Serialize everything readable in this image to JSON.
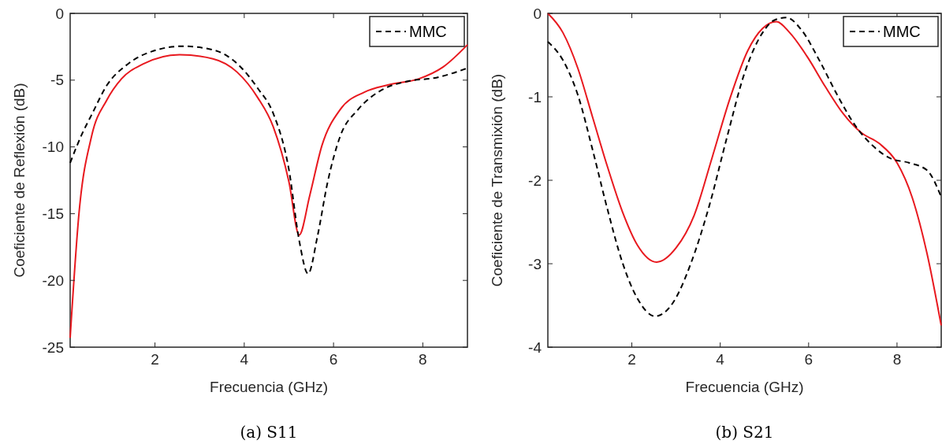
{
  "chart_data": [
    {
      "type": "line",
      "title": "(a) S11",
      "xlabel": "Frecuencia (GHz)",
      "ylabel": "Coeficiente de Reflexión (dB)",
      "xlim": [
        0.1,
        9
      ],
      "xticks": [
        2,
        4,
        6,
        8
      ],
      "ylim": [
        -25,
        0
      ],
      "yticks": [
        -25,
        -20,
        -15,
        -10,
        -5,
        0
      ],
      "grid": false,
      "legend": "top right",
      "series": [
        {
          "color": "#e8191f",
          "line_style": "solid",
          "x": [
            0.1,
            0.3,
            0.58,
            0.92,
            1.25,
            1.73,
            2.55,
            3.3,
            3.84,
            4.3,
            4.65,
            5.0,
            5.23,
            5.47,
            5.74,
            6.15,
            6.69,
            7.23,
            7.91,
            8.46,
            9.0
          ],
          "values": [
            -24.3,
            -14.9,
            -9.2,
            -6.5,
            -4.9,
            -3.8,
            -3.1,
            -3.4,
            -4.4,
            -6.3,
            -8.5,
            -12.6,
            -16.6,
            -13.6,
            -9.9,
            -7.2,
            -5.9,
            -5.35,
            -4.9,
            -4.0,
            -2.35
          ]
        },
        {
          "name": "MMC",
          "color": "#000000",
          "line_style": "dashed",
          "x": [
            0.1,
            0.37,
            0.58,
            0.92,
            1.39,
            1.93,
            2.61,
            3.3,
            3.84,
            4.3,
            4.65,
            5.0,
            5.23,
            5.43,
            5.64,
            5.87,
            6.15,
            6.55,
            7.1,
            7.64,
            8.32,
            9.0
          ],
          "values": [
            -11.2,
            -9.0,
            -7.6,
            -5.4,
            -3.8,
            -2.85,
            -2.46,
            -2.73,
            -3.76,
            -5.6,
            -7.5,
            -11.7,
            -17.0,
            -19.5,
            -16.7,
            -12.6,
            -9.2,
            -7.2,
            -5.7,
            -5.1,
            -4.8,
            -4.1
          ]
        }
      ]
    },
    {
      "type": "line",
      "title": "(b) S21",
      "xlabel": "Frecuencia (GHz)",
      "ylabel": "Coeficiente de Transmixión (dB)",
      "xlim": [
        0.1,
        9
      ],
      "xticks": [
        2,
        4,
        6,
        8
      ],
      "ylim": [
        -4,
        0
      ],
      "yticks": [
        -4,
        -3,
        -2,
        -1,
        0
      ],
      "grid": false,
      "legend": "top right",
      "series": [
        {
          "color": "#e8191f",
          "line_style": "solid",
          "x": [
            0.1,
            0.44,
            0.78,
            1.11,
            1.45,
            1.79,
            2.13,
            2.56,
            3.0,
            3.41,
            3.81,
            4.22,
            4.62,
            4.96,
            5.27,
            5.57,
            5.97,
            6.38,
            6.78,
            7.19,
            7.6,
            8.0,
            8.34,
            8.68,
            9.0
          ],
          "values": [
            0,
            -0.23,
            -0.66,
            -1.24,
            -1.84,
            -2.38,
            -2.78,
            -2.98,
            -2.81,
            -2.42,
            -1.74,
            -1.02,
            -0.45,
            -0.18,
            -0.1,
            -0.23,
            -0.52,
            -0.88,
            -1.2,
            -1.43,
            -1.56,
            -1.79,
            -2.2,
            -2.88,
            -3.74
          ]
        },
        {
          "name": "MMC",
          "color": "#000000",
          "line_style": "dashed",
          "x": [
            0.1,
            0.44,
            0.78,
            1.11,
            1.45,
            1.79,
            2.13,
            2.53,
            2.94,
            3.34,
            3.75,
            4.15,
            4.56,
            4.96,
            5.23,
            5.5,
            5.84,
            6.24,
            6.65,
            7.05,
            7.46,
            7.86,
            8.27,
            8.68,
            9.0
          ],
          "values": [
            -0.34,
            -0.56,
            -0.98,
            -1.63,
            -2.35,
            -2.99,
            -3.42,
            -3.63,
            -3.46,
            -2.99,
            -2.31,
            -1.49,
            -0.7,
            -0.23,
            -0.08,
            -0.05,
            -0.2,
            -0.56,
            -0.98,
            -1.34,
            -1.59,
            -1.74,
            -1.79,
            -1.88,
            -2.2
          ]
        }
      ]
    }
  ]
}
